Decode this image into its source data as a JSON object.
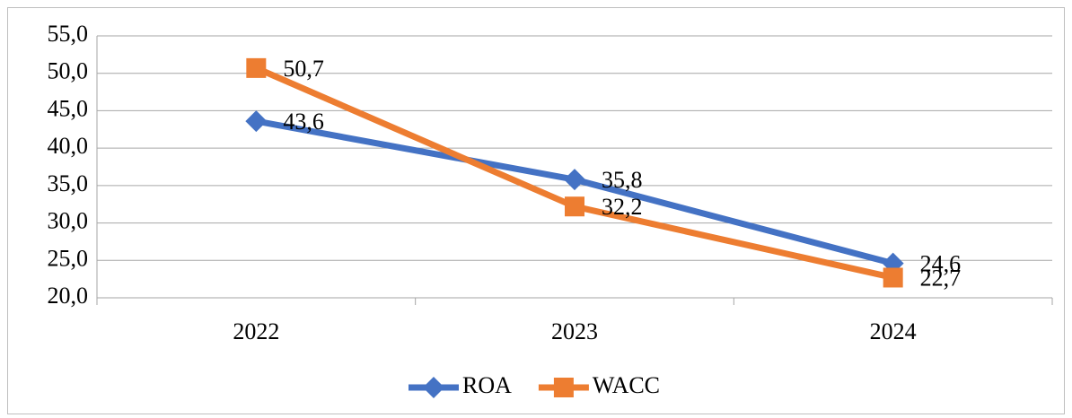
{
  "chart_data": {
    "type": "line",
    "categories": [
      "2022",
      "2023",
      "2024"
    ],
    "series": [
      {
        "name": "ROA",
        "color": "#4472c4",
        "values": [
          43.6,
          35.8,
          24.6
        ],
        "value_labels": [
          "43,6",
          "35,8",
          "24,6"
        ]
      },
      {
        "name": "WACC",
        "color": "#ed7d31",
        "values": [
          50.7,
          32.2,
          22.7
        ],
        "value_labels": [
          "50,7",
          "32,2",
          "22,7"
        ]
      }
    ],
    "ylim": [
      20,
      55
    ],
    "yticks": [
      {
        "value": 20,
        "label": "20,0"
      },
      {
        "value": 25,
        "label": "25,0"
      },
      {
        "value": 30,
        "label": "30,0"
      },
      {
        "value": 35,
        "label": "35,0"
      },
      {
        "value": 40,
        "label": "40,0"
      },
      {
        "value": 45,
        "label": "45,0"
      },
      {
        "value": 50,
        "label": "50,0"
      },
      {
        "value": 55,
        "label": "55,0"
      }
    ],
    "grid": true,
    "legend": "bottom"
  }
}
